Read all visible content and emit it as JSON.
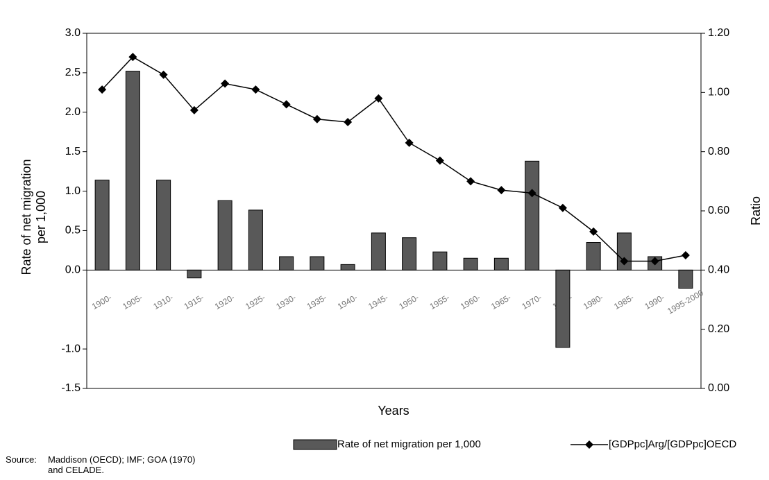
{
  "chart_data": {
    "type": "bar",
    "x_label": "Years",
    "y_label": "Rate of net migration per 1,000",
    "y2_label": "Ratio",
    "source_label": "Source:",
    "source_text": "Maddison (OECD); IMF; GOA (1970) and CELADE.",
    "categories": [
      "1900-",
      "1905-",
      "1910-",
      "1915-",
      "1920-",
      "1925-",
      "1930-",
      "1935-",
      "1940-",
      "1945-",
      "1950-",
      "1955-",
      "1960-",
      "1965-",
      "1970-",
      "1975-",
      "1980-",
      "1985-",
      "1990-",
      "1995-2000"
    ],
    "series": [
      {
        "name": "Rate of net migration per 1,000",
        "type": "bar",
        "color": "#595959",
        "values": [
          1.14,
          2.52,
          1.14,
          -0.1,
          0.88,
          0.76,
          0.17,
          0.17,
          0.07,
          0.47,
          0.41,
          0.23,
          0.15,
          0.15,
          1.38,
          -0.98,
          0.35,
          0.47,
          0.17,
          -0.23
        ]
      },
      {
        "name": "[GDPpc]Arg/[GDPpc]OECD",
        "type": "line",
        "axis": "y2",
        "color": "#000000",
        "marker": "diamond",
        "values": [
          1.01,
          1.12,
          1.06,
          0.94,
          1.03,
          1.01,
          0.96,
          0.91,
          0.9,
          0.98,
          0.83,
          0.77,
          0.7,
          0.67,
          0.66,
          0.61,
          0.53,
          0.43,
          0.43,
          0.45
        ]
      }
    ],
    "ylim": [
      -1.5,
      3.0
    ],
    "yticks": [
      {
        "value": -1.5,
        "label": "-1.5"
      },
      {
        "value": -1.0,
        "label": "-1.0"
      },
      {
        "value": 0.0,
        "label": "0.0"
      },
      0.5,
      {
        "value": 1.0,
        "label": "1.0"
      },
      1.5,
      {
        "value": 2.0,
        "label": "2.0"
      },
      2.5,
      {
        "value": 3.0,
        "label": "3.0"
      }
    ],
    "y2lim": [
      0.0,
      1.2
    ],
    "y2ticks": [
      {
        "value": 0.0,
        "label": "0.00"
      },
      {
        "value": 0.2,
        "label": "0.20"
      },
      {
        "value": 0.4,
        "label": "0.40"
      },
      {
        "value": 0.6,
        "label": "0.60"
      },
      {
        "value": 0.8,
        "label": "0.80"
      },
      {
        "value": 1.0,
        "label": "1.00"
      },
      {
        "value": 1.2,
        "label": "1.20"
      }
    ],
    "grid": false
  }
}
